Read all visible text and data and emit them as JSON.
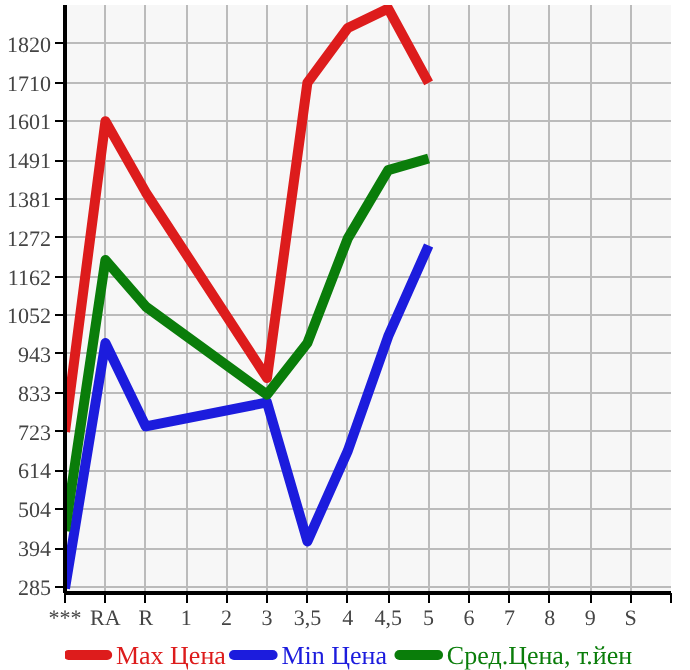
{
  "chart_data": {
    "type": "line",
    "categories": [
      "***",
      "RA",
      "R",
      "1",
      "2",
      "3",
      "3,5",
      "4",
      "4,5",
      "5",
      "6",
      "7",
      "8",
      "9",
      "S"
    ],
    "series": [
      {
        "name": "Max Цена",
        "color": "#dd1c1c",
        "values": [
          723,
          1601,
          1400,
          null,
          null,
          875,
          1710,
          1865,
          1920,
          1710,
          null,
          null,
          null,
          null,
          null
        ]
      },
      {
        "name": "Min Цена",
        "color": "#1c1cdd",
        "values": [
          280,
          974,
          738,
          null,
          null,
          806,
          413,
          669,
          993,
          1250,
          null,
          null,
          null,
          null,
          null
        ]
      },
      {
        "name": "Сред.Цена, т.йен",
        "color": "#0a7d0a",
        "values": [
          442,
          1209,
          1077,
          null,
          null,
          828,
          974,
          1270,
          1463,
          1496,
          null,
          null,
          null,
          null,
          null
        ]
      }
    ],
    "ylim": [
      267,
      1930
    ],
    "yticks": [
      285,
      394,
      504,
      614,
      723,
      833,
      943,
      1052,
      1162,
      1272,
      1381,
      1491,
      1601,
      1710,
      1820
    ],
    "grid": true,
    "legend": "bottom",
    "marker": "none",
    "line_style": "solid"
  }
}
